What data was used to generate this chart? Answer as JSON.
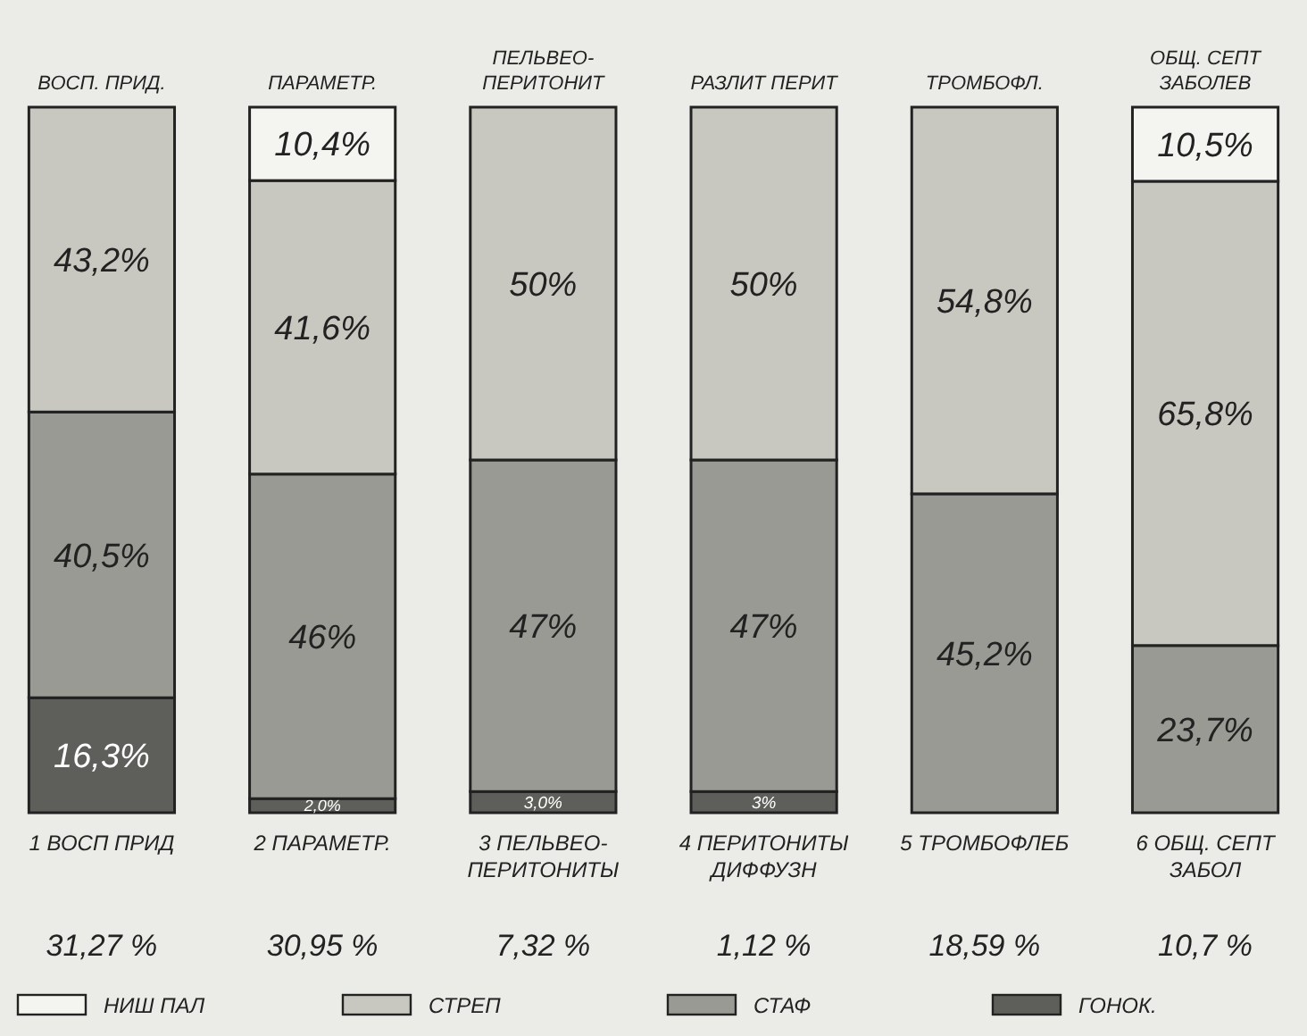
{
  "chart_data": {
    "type": "bar",
    "stacked": true,
    "categories": [
      "1 ВОСП ПРИД",
      "2 ПАРАМЕТР.",
      "3 ПЕЛЬВЕО-ПЕРИТОНИТЫ",
      "4 ПЕРИТОНИТЫ ДИФФУЗН",
      "5 ТРОМБОФЛЕБ",
      "6 ОБЩ. СЕПТ ЗАБОЛ"
    ],
    "ylim": [
      0,
      100
    ],
    "tick_labels": "x",
    "series": [
      {
        "name": "ГОНОК.",
        "color": "#5e5e5a",
        "values": [
          16.3,
          2.0,
          3.0,
          3,
          null,
          null
        ],
        "value_labels": [
          "16,3%",
          "2,0%",
          "3,0%",
          "3%",
          null,
          null
        ]
      },
      {
        "name": "СТАФ",
        "color": "#9a9a94",
        "values": [
          40.5,
          46,
          47,
          47,
          45.2,
          23.7
        ],
        "value_labels": [
          "40,5%",
          "46%",
          "47%",
          "47%",
          "45,2%",
          "23,7%"
        ]
      },
      {
        "name": "СТРЕП",
        "color": "#c8c8c0",
        "values": [
          43.2,
          41.6,
          50,
          50,
          54.8,
          65.8
        ],
        "value_labels": [
          "43,2%",
          "41,6%",
          "50%",
          "50%",
          "54,8%",
          "65,8%"
        ]
      },
      {
        "name": "НИШ ПАЛ",
        "color": "#f4f4f0",
        "values": [
          null,
          10.4,
          null,
          null,
          null,
          10.5
        ],
        "value_labels": [
          null,
          "10,4%",
          null,
          null,
          null,
          "10,5%"
        ]
      }
    ],
    "annotations": [
      "ВОСП. ПРИД.",
      "ПАРАМЕТР.",
      "ПЕЛЬВЕО-ПЕРИТОНИТ",
      "РАЗЛИТ ПЕРИТ",
      "ТРОМБОФЛ.",
      "ОБЩ. СЕПТ ЗАБОЛЕВ",
      "31,27 %",
      "30,95 %",
      "7,32 %",
      "1,12 %",
      "18,59 %",
      "10,7 %"
    ],
    "legend": "bottom"
  }
}
